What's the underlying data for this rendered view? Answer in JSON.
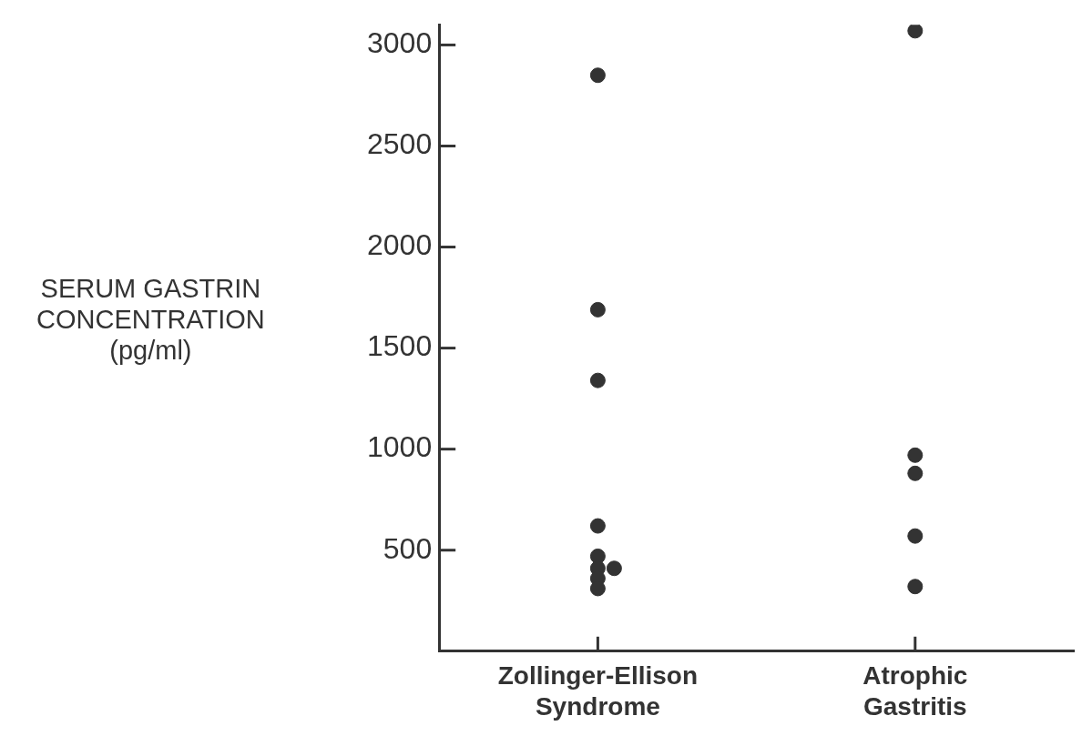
{
  "chart_data": {
    "type": "scatter",
    "ylabel": "SERUM GASTRIN CONCENTRATION (pg/ml)",
    "categories": [
      "Zollinger-Ellison Syndrome",
      "Atrophic Gastritis"
    ],
    "series": [
      {
        "color": "#333333",
        "x": [
          "Zollinger-Ellison Syndrome",
          "Zollinger-Ellison Syndrome",
          "Zollinger-Ellison Syndrome",
          "Zollinger-Ellison Syndrome",
          "Zollinger-Ellison Syndrome",
          "Zollinger-Ellison Syndrome",
          "Zollinger-Ellison Syndrome",
          "Zollinger-Ellison Syndrome",
          "Zollinger-Ellison Syndrome",
          "Atrophic Gastritis",
          "Atrophic Gastritis",
          "Atrophic Gastritis",
          "Atrophic Gastritis",
          "Atrophic Gastritis"
        ],
        "values": [
          2850,
          1690,
          1340,
          620,
          470,
          410,
          410,
          360,
          310,
          3070,
          970,
          880,
          570,
          320
        ]
      }
    ],
    "ylim": [
      0,
      3100
    ],
    "yticks": [
      500,
      1000,
      1500,
      2000,
      2500,
      3000
    ],
    "grid": false,
    "legend": false,
    "marker": "circle"
  }
}
